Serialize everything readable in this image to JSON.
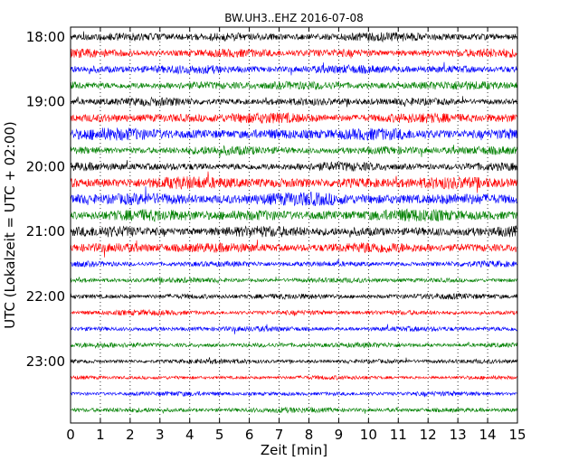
{
  "chart_data": {
    "type": "line",
    "title": "BW.UH3..EHZ 2016-07-08",
    "xlabel": "Zeit  [min]",
    "ylabel": "UTC (Lokalzeit = UTC + 02:00)",
    "xlim": [
      0,
      15
    ],
    "x_ticks": [
      "0",
      "1",
      "2",
      "3",
      "4",
      "5",
      "6",
      "7",
      "8",
      "9",
      "10",
      "11",
      "12",
      "13",
      "14",
      "15"
    ],
    "y_ticks": [
      "18:00",
      "19:00",
      "20:00",
      "21:00",
      "22:00",
      "23:00"
    ],
    "grid": "x dotted",
    "trace_colors": [
      "#000000",
      "#ff0000",
      "#0000ff",
      "#008000"
    ],
    "series": [
      {
        "row": "18:00",
        "color_index": 0,
        "amplitude": 0.3
      },
      {
        "row": "18:15",
        "color_index": 1,
        "amplitude": 0.3
      },
      {
        "row": "18:30",
        "color_index": 2,
        "amplitude": 0.3
      },
      {
        "row": "18:45",
        "color_index": 3,
        "amplitude": 0.3
      },
      {
        "row": "19:00",
        "color_index": 0,
        "amplitude": 0.28
      },
      {
        "row": "19:15",
        "color_index": 1,
        "amplitude": 0.36
      },
      {
        "row": "19:30",
        "color_index": 2,
        "amplitude": 0.42
      },
      {
        "row": "19:45",
        "color_index": 3,
        "amplitude": 0.3
      },
      {
        "row": "20:00",
        "color_index": 0,
        "amplitude": 0.3
      },
      {
        "row": "20:15",
        "color_index": 1,
        "amplitude": 0.42
      },
      {
        "row": "20:30",
        "color_index": 2,
        "amplitude": 0.45
      },
      {
        "row": "20:45",
        "color_index": 3,
        "amplitude": 0.42
      },
      {
        "row": "21:00",
        "color_index": 0,
        "amplitude": 0.38
      },
      {
        "row": "21:15",
        "color_index": 1,
        "amplitude": 0.36
      },
      {
        "row": "21:30",
        "color_index": 2,
        "amplitude": 0.2
      },
      {
        "row": "21:45",
        "color_index": 3,
        "amplitude": 0.18
      },
      {
        "row": "22:00",
        "color_index": 0,
        "amplitude": 0.2
      },
      {
        "row": "22:15",
        "color_index": 1,
        "amplitude": 0.18
      },
      {
        "row": "22:30",
        "color_index": 2,
        "amplitude": 0.18
      },
      {
        "row": "22:45",
        "color_index": 3,
        "amplitude": 0.18
      },
      {
        "row": "23:00",
        "color_index": 0,
        "amplitude": 0.16
      },
      {
        "row": "23:15",
        "color_index": 1,
        "amplitude": 0.14
      },
      {
        "row": "23:30",
        "color_index": 2,
        "amplitude": 0.16
      },
      {
        "row": "23:45",
        "color_index": 3,
        "amplitude": 0.18
      }
    ]
  }
}
